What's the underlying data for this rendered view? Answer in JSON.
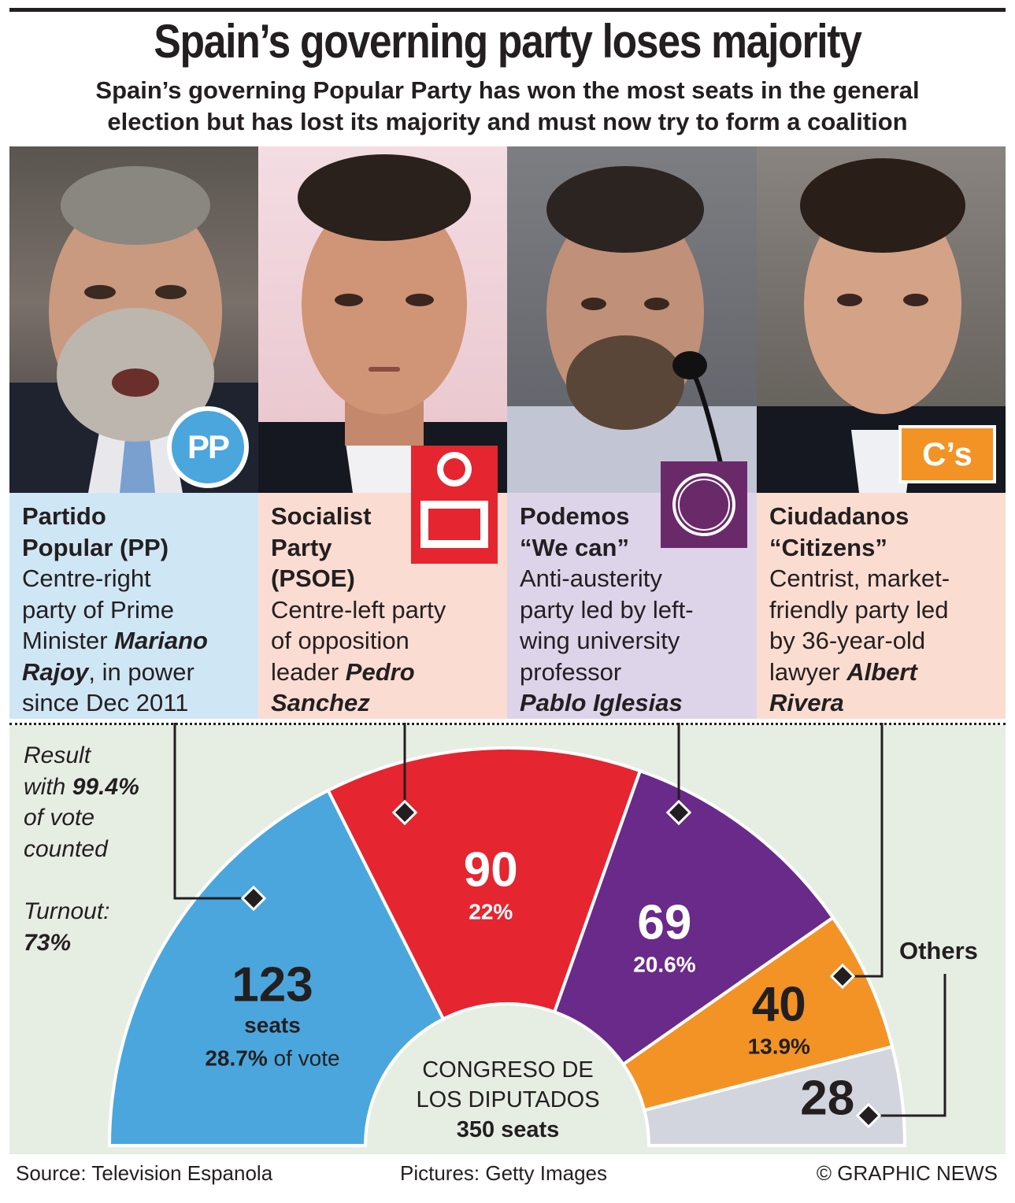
{
  "header": {
    "title": "Spain’s governing party loses majority",
    "subtitle_line1": "Spain’s governing Popular Party has won the most seats in the general",
    "subtitle_line2": "election but has lost its majority and must now try to form a coalition"
  },
  "parties": [
    {
      "key": "pp",
      "name": "Partido\nPopular (PP)",
      "desc_pre": "Centre-right\nparty of Prime\nMinister ",
      "leader": "Mariano\nRajoy",
      "desc_post": ", in power\nsince Dec 2011",
      "logo_text": "PP",
      "photo_icon": "portrait-mariano-rajoy",
      "color": "#4ba6dd",
      "card_color": "#cfe6f5"
    },
    {
      "key": "psoe",
      "name": "Socialist\nParty\n(PSOE)",
      "desc_pre": "Centre-left party\nof opposition\nleader ",
      "leader": "Pedro\nSanchez",
      "desc_post": "",
      "logo_text": "",
      "photo_icon": "portrait-pedro-sanchez",
      "color": "#e52530",
      "card_color": "#fbdcd2"
    },
    {
      "key": "podemos",
      "name": "Podemos\n“We can”",
      "desc_pre": "Anti-austerity\nparty led by left-\nwing university\nprofessor\n",
      "leader": "Pablo Iglesias",
      "desc_post": "",
      "logo_text": "",
      "photo_icon": "portrait-pablo-iglesias",
      "color": "#6a2a8a",
      "card_color": "#ddd4ea"
    },
    {
      "key": "cs",
      "name": "Ciudadanos\n“Citizens”",
      "desc_pre": "Centrist, market-\nfriendly party led\nby 36-year-old\nlawyer ",
      "leader": "Albert\nRivera",
      "desc_post": "",
      "logo_text": "C’s",
      "photo_icon": "portrait-albert-rivera",
      "color": "#f39325",
      "card_color": "#fbdcd0"
    }
  ],
  "side_notes": {
    "result_line1": "Result",
    "result_line2_pre": "with ",
    "result_pct": "99.4%",
    "result_line3": "of vote",
    "result_line4": "counted",
    "turnout_label": "Turnout:",
    "turnout_value": "73%"
  },
  "center_label": {
    "line1": "CONGRESO DE",
    "line2": "LOS DIPUTADOS",
    "line3": "350 seats"
  },
  "others_label": "Others",
  "chart_data": {
    "type": "pie",
    "subtype": "hemicycle",
    "total_seats": 350,
    "segments": [
      {
        "name": "Partido Popular (PP)",
        "seats": 123,
        "seats_label": "123",
        "unit_label": "seats",
        "vote_pct": "28.7%",
        "vote_suffix": " of vote",
        "color": "#4ba6dd"
      },
      {
        "name": "Socialist Party (PSOE)",
        "seats": 90,
        "seats_label": "90",
        "vote_pct": "22%",
        "color": "#e52530"
      },
      {
        "name": "Podemos",
        "seats": 69,
        "seats_label": "69",
        "vote_pct": "20.6%",
        "color": "#6a2a8a"
      },
      {
        "name": "Ciudadanos",
        "seats": 40,
        "seats_label": "40",
        "vote_pct": "13.9%",
        "color": "#f39325"
      },
      {
        "name": "Others",
        "seats": 28,
        "seats_label": "28",
        "vote_pct": "",
        "color": "#d3d5de"
      }
    ]
  },
  "footer": {
    "source": "Source: Television Espanola",
    "pictures": "Pictures: Getty Images",
    "credit": "© GRAPHIC NEWS"
  }
}
